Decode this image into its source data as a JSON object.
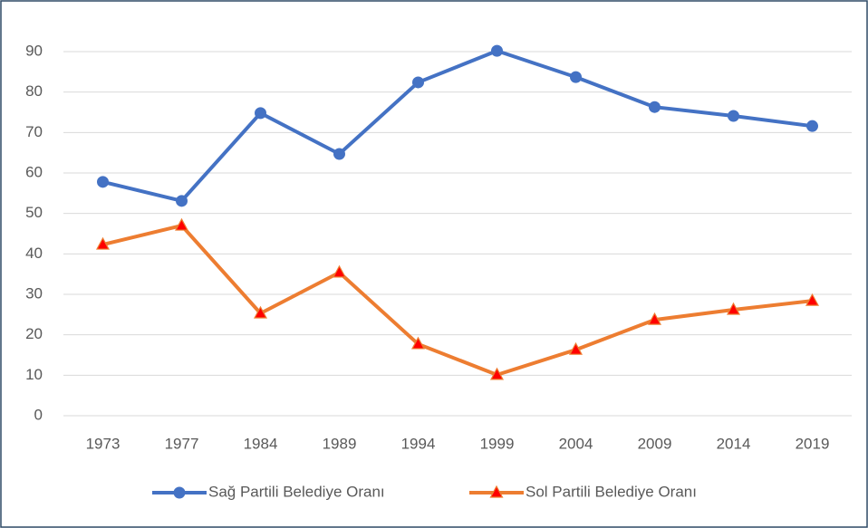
{
  "chart_data": {
    "type": "line",
    "categories": [
      "1973",
      "1977",
      "1984",
      "1989",
      "1994",
      "1999",
      "2004",
      "2009",
      "2014",
      "2019"
    ],
    "series": [
      {
        "name": "Sağ Partili Belediye Oranı",
        "color": "#4472c4",
        "marker": "circle",
        "marker_color": "#4472c4",
        "values": [
          57.8,
          53.1,
          74.8,
          64.7,
          82.4,
          90.2,
          83.7,
          76.3,
          74.1,
          71.6
        ]
      },
      {
        "name": "Sol Partili Belediye Oranı",
        "color": "#ed7d31",
        "marker": "triangle",
        "marker_color": "#ff0000",
        "values": [
          42.3,
          47.0,
          25.3,
          35.4,
          17.7,
          10.1,
          16.3,
          23.7,
          26.2,
          28.4
        ]
      }
    ],
    "ylim": [
      0,
      90
    ],
    "yticks": [
      0,
      10,
      20,
      30,
      40,
      50,
      60,
      70,
      80,
      90
    ],
    "grid": true,
    "legend": "bottom"
  }
}
